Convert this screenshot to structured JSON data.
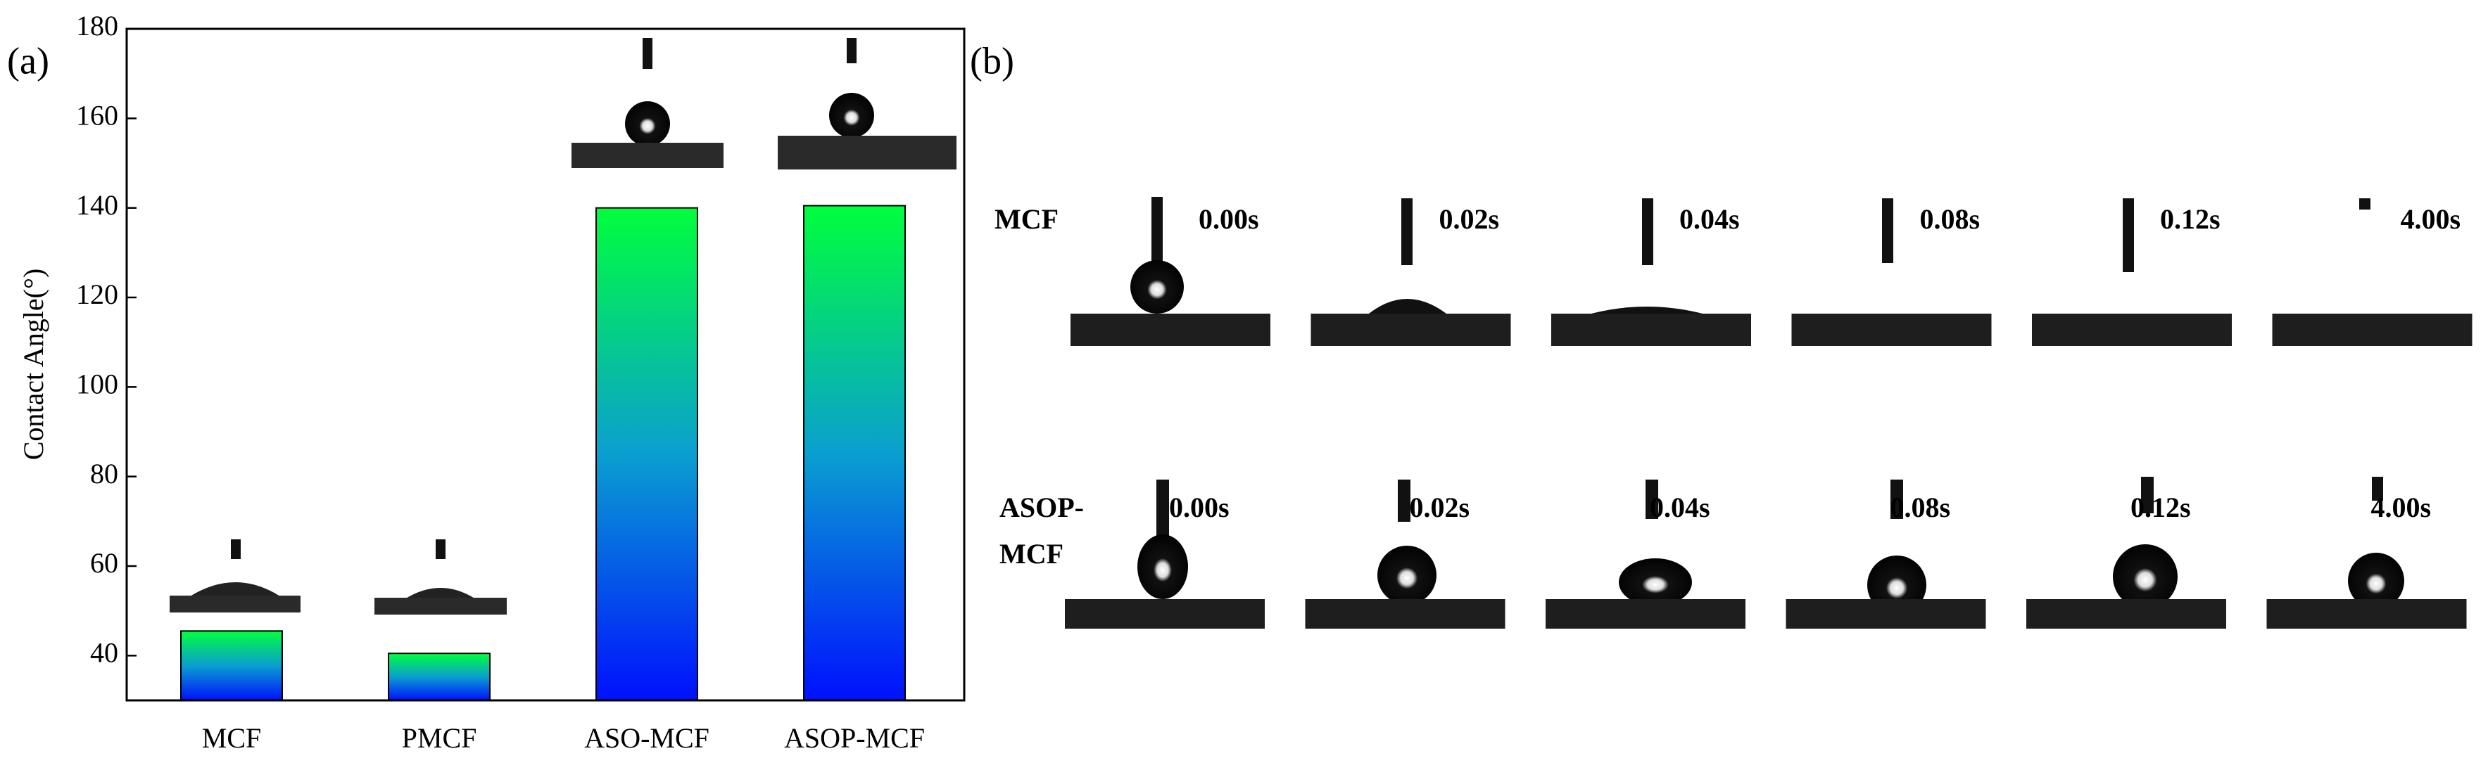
{
  "panel_labels": [
    "(a)",
    "(b)"
  ],
  "chart_data": {
    "type": "bar",
    "y_label": "Contact Angle(°)",
    "categories": [
      "MCF",
      "PMCF",
      "ASO-MCF",
      "ASOP-MCF"
    ],
    "values": [
      45.5,
      40.5,
      140,
      140.5
    ],
    "gradient": [
      "#00ff3c",
      "#0a9fd0",
      "#0010ff"
    ],
    "ylim": [
      30,
      180
    ],
    "yticks": [
      40,
      60,
      80,
      100,
      120,
      140,
      160,
      180
    ]
  },
  "panel_b": {
    "times": [
      "0.00s",
      "0.02s",
      "0.04s",
      "0.08s",
      "0.12s",
      "4.00s"
    ],
    "rows": [
      {
        "label": [
          "MCF"
        ]
      },
      {
        "label": [
          "ASOP-",
          "MCF"
        ]
      }
    ]
  }
}
